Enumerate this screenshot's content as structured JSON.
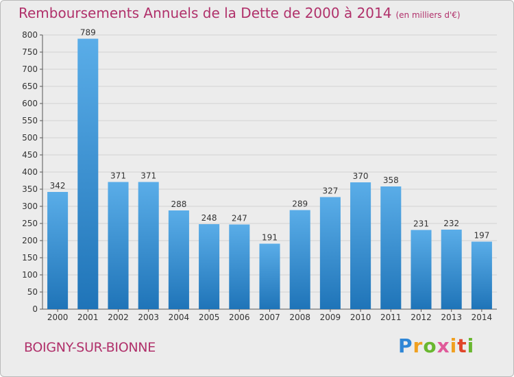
{
  "header": {
    "title": "Remboursements Annuels de la Dette de 2000 à 2014",
    "subtitle": "(en milliers d'€)"
  },
  "commune": "BOIGNY-SUR-BIONNE",
  "brand": {
    "logo_text": "Proxiti",
    "logo_colors": [
      "#2e86d6",
      "#f0a020",
      "#69b72f",
      "#e05a9a",
      "#f0a020",
      "#e0462a",
      "#69b72f"
    ]
  },
  "colors": {
    "title": "#b0306a",
    "bar_light": "#5aade8",
    "bar_dark": "#1f74b8",
    "axis_text": "#333333"
  },
  "chart_data": {
    "type": "bar",
    "title": "Remboursements Annuels de la Dette de 2000 à 2014",
    "subtitle": "(en milliers d'€)",
    "categories": [
      "2000",
      "2001",
      "2002",
      "2003",
      "2004",
      "2005",
      "2006",
      "2007",
      "2008",
      "2009",
      "2010",
      "2011",
      "2012",
      "2013",
      "2014"
    ],
    "values": [
      342,
      789,
      371,
      371,
      288,
      248,
      247,
      191,
      289,
      327,
      370,
      358,
      231,
      232,
      197
    ],
    "ylim": [
      0,
      800
    ],
    "yticks": [
      0,
      50,
      100,
      150,
      200,
      250,
      300,
      350,
      400,
      450,
      500,
      550,
      600,
      650,
      700,
      750,
      800
    ],
    "grid": true,
    "legend": "none"
  }
}
